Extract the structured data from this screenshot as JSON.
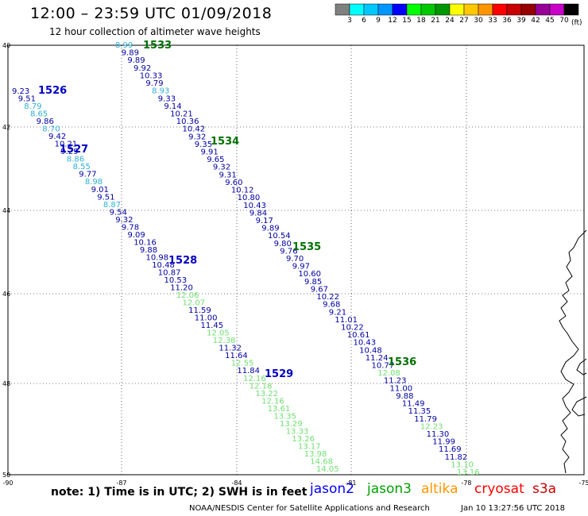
{
  "header": {
    "title": "12:00 – 23:59 UTC 01/09/2018",
    "subtitle": "12 hour collection of altimeter wave heights"
  },
  "legend": {
    "unit": "(ft)",
    "bins": [
      {
        "label": "",
        "color": "#808080"
      },
      {
        "label": "3",
        "color": "#00ffff"
      },
      {
        "label": "6",
        "color": "#00c8ff"
      },
      {
        "label": "9",
        "color": "#0096ff"
      },
      {
        "label": "12",
        "color": "#0000ff"
      },
      {
        "label": "15",
        "color": "#00ff00"
      },
      {
        "label": "18",
        "color": "#00c800"
      },
      {
        "label": "21",
        "color": "#009600"
      },
      {
        "label": "24",
        "color": "#ffff00"
      },
      {
        "label": "27",
        "color": "#ffc800"
      },
      {
        "label": "30",
        "color": "#ff9600"
      },
      {
        "label": "33",
        "color": "#ff0000"
      },
      {
        "label": "36",
        "color": "#c80000"
      },
      {
        "label": "39",
        "color": "#960000"
      },
      {
        "label": "42",
        "color": "#960096"
      },
      {
        "label": "45",
        "color": "#c800c8"
      },
      {
        "label": "70",
        "color": "#000000"
      }
    ]
  },
  "axes": {
    "lat_ticks": [
      "40",
      "42",
      "44",
      "46",
      "48",
      "50"
    ],
    "lon_ticks": [
      "-90",
      "-87",
      "-84",
      "-81",
      "-78",
      "-75"
    ]
  },
  "colors": {
    "dark_blue": "#0000a0",
    "light_blue": "#30b0d8",
    "light_green": "#70e070",
    "pass_label_blue": "#0000c0",
    "pass_label_green": "#007000"
  },
  "passes": [
    {
      "label": "1526",
      "satellite": "jason2"
    },
    {
      "label": "1527",
      "satellite": "jason2"
    },
    {
      "label": "1528",
      "satellite": "jason2"
    },
    {
      "label": "1529",
      "satellite": "jason2"
    },
    {
      "label": "1533",
      "satellite": "jason3"
    },
    {
      "label": "1534",
      "satellite": "jason3"
    },
    {
      "label": "1535",
      "satellite": "jason3"
    },
    {
      "label": "1536",
      "satellite": "jason3"
    }
  ],
  "track_west": [
    {
      "v": "9.23",
      "c": "db"
    },
    {
      "v": "9.51",
      "c": "db"
    },
    {
      "v": "8.79",
      "c": "lb"
    },
    {
      "v": "8.65",
      "c": "lb"
    },
    {
      "v": "9.86",
      "c": "db"
    },
    {
      "v": "8.70",
      "c": "lb"
    },
    {
      "v": "9.42",
      "c": "db"
    },
    {
      "v": "10.21",
      "c": "db"
    },
    {
      "v": "9.29",
      "c": "db"
    },
    {
      "v": "8.86",
      "c": "lb"
    },
    {
      "v": "8.55",
      "c": "lb"
    },
    {
      "v": "9.77",
      "c": "db"
    },
    {
      "v": "8.98",
      "c": "lb"
    },
    {
      "v": "9.01",
      "c": "db"
    },
    {
      "v": "9.51",
      "c": "db"
    },
    {
      "v": "8.87",
      "c": "lb"
    },
    {
      "v": "9.54",
      "c": "db"
    },
    {
      "v": "9.32",
      "c": "db"
    },
    {
      "v": "9.78",
      "c": "db"
    },
    {
      "v": "9.09",
      "c": "db"
    },
    {
      "v": "10.16",
      "c": "db"
    },
    {
      "v": "9.88",
      "c": "db"
    },
    {
      "v": "10.98",
      "c": "db"
    },
    {
      "v": "10.48",
      "c": "db"
    },
    {
      "v": "10.87",
      "c": "db"
    },
    {
      "v": "10.53",
      "c": "db"
    },
    {
      "v": "11.20",
      "c": "db"
    },
    {
      "v": "12.06",
      "c": "lg"
    },
    {
      "v": "12.07",
      "c": "lg"
    },
    {
      "v": "11.59",
      "c": "db"
    },
    {
      "v": "11.00",
      "c": "db"
    },
    {
      "v": "11.45",
      "c": "db"
    },
    {
      "v": "12.05",
      "c": "lg"
    },
    {
      "v": "12.38",
      "c": "lg"
    },
    {
      "v": "11.32",
      "c": "db"
    },
    {
      "v": "11.64",
      "c": "db"
    },
    {
      "v": "12.55",
      "c": "lg"
    },
    {
      "v": "11.84",
      "c": "db"
    },
    {
      "v": "12.16",
      "c": "lg"
    },
    {
      "v": "12.18",
      "c": "lg"
    },
    {
      "v": "13.22",
      "c": "lg"
    },
    {
      "v": "12.16",
      "c": "lg"
    },
    {
      "v": "13.61",
      "c": "lg"
    },
    {
      "v": "13.35",
      "c": "lg"
    },
    {
      "v": "13.29",
      "c": "lg"
    },
    {
      "v": "13.33",
      "c": "lg"
    },
    {
      "v": "13.26",
      "c": "lg"
    },
    {
      "v": "13.17",
      "c": "lg"
    },
    {
      "v": "13.98",
      "c": "lg"
    },
    {
      "v": "14.68",
      "c": "lg"
    },
    {
      "v": "14.05",
      "c": "lg"
    }
  ],
  "track_east": [
    {
      "v": "8.99",
      "c": "lb"
    },
    {
      "v": "9.89",
      "c": "db"
    },
    {
      "v": "9.89",
      "c": "db"
    },
    {
      "v": "9.92",
      "c": "db"
    },
    {
      "v": "10.33",
      "c": "db"
    },
    {
      "v": "9.79",
      "c": "db"
    },
    {
      "v": "8.93",
      "c": "lb"
    },
    {
      "v": "9.33",
      "c": "db"
    },
    {
      "v": "9.14",
      "c": "db"
    },
    {
      "v": "10.21",
      "c": "db"
    },
    {
      "v": "10.36",
      "c": "db"
    },
    {
      "v": "10.42",
      "c": "db"
    },
    {
      "v": "9.32",
      "c": "db"
    },
    {
      "v": "9.35",
      "c": "db"
    },
    {
      "v": "9.91",
      "c": "db"
    },
    {
      "v": "9.65",
      "c": "db"
    },
    {
      "v": "9.32",
      "c": "db"
    },
    {
      "v": "9.31",
      "c": "db"
    },
    {
      "v": "9.60",
      "c": "db"
    },
    {
      "v": "10.12",
      "c": "db"
    },
    {
      "v": "10.80",
      "c": "db"
    },
    {
      "v": "10.43",
      "c": "db"
    },
    {
      "v": "9.84",
      "c": "db"
    },
    {
      "v": "9.17",
      "c": "db"
    },
    {
      "v": "9.89",
      "c": "db"
    },
    {
      "v": "10.54",
      "c": "db"
    },
    {
      "v": "9.80",
      "c": "db"
    },
    {
      "v": "9.76",
      "c": "db"
    },
    {
      "v": "9.70",
      "c": "db"
    },
    {
      "v": "9.97",
      "c": "db"
    },
    {
      "v": "10.60",
      "c": "db"
    },
    {
      "v": "9.85",
      "c": "db"
    },
    {
      "v": "9.67",
      "c": "db"
    },
    {
      "v": "10.22",
      "c": "db"
    },
    {
      "v": "9.68",
      "c": "db"
    },
    {
      "v": "9.21",
      "c": "db"
    },
    {
      "v": "11.01",
      "c": "db"
    },
    {
      "v": "10.22",
      "c": "db"
    },
    {
      "v": "10.61",
      "c": "db"
    },
    {
      "v": "10.43",
      "c": "db"
    },
    {
      "v": "10.48",
      "c": "db"
    },
    {
      "v": "11.24",
      "c": "db"
    },
    {
      "v": "10.77",
      "c": "db"
    },
    {
      "v": "12.08",
      "c": "lg"
    },
    {
      "v": "11.23",
      "c": "db"
    },
    {
      "v": "11.00",
      "c": "db"
    },
    {
      "v": "9.88",
      "c": "db"
    },
    {
      "v": "11.49",
      "c": "db"
    },
    {
      "v": "11.35",
      "c": "db"
    },
    {
      "v": "11.79",
      "c": "db"
    },
    {
      "v": "12.23",
      "c": "lg"
    },
    {
      "v": "11.30",
      "c": "db"
    },
    {
      "v": "11.99",
      "c": "db"
    },
    {
      "v": "11.69",
      "c": "db"
    },
    {
      "v": "11.82",
      "c": "db"
    },
    {
      "v": "13.10",
      "c": "lg"
    },
    {
      "v": "13.16",
      "c": "lg"
    }
  ],
  "footer": {
    "note": "note:  1) Time is in UTC; 2) SWH is in feet",
    "missions": [
      {
        "name": "jason2",
        "color": "#0000ff"
      },
      {
        "name": "jason3",
        "color": "#00a000"
      },
      {
        "name": "altika",
        "color": "#ff9600"
      },
      {
        "name": "cryosat",
        "color": "#ff0000"
      },
      {
        "name": "s3a",
        "color": "#c80000"
      }
    ],
    "credit": "NOAA/NESDIS Center for Satellite Applications and Research",
    "timestamp": "Jan 10 13:27:56 UTC 2018"
  }
}
